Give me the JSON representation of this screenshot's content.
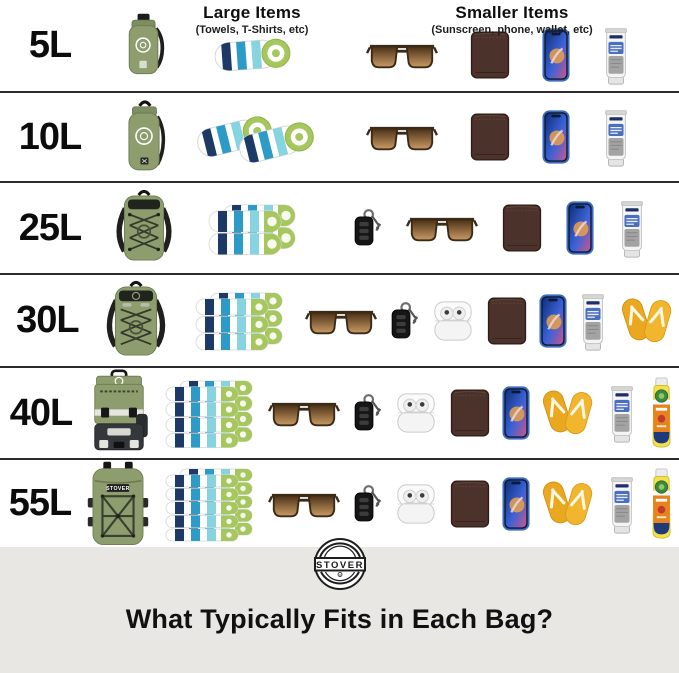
{
  "header": {
    "large_items_title": "Large Items",
    "large_items_subtitle": "(Towels, T-Shirts, etc)",
    "smaller_items_title": "Smaller Items",
    "smaller_items_subtitle": "(Sunscreen, phone, wallet, etc)"
  },
  "rows": [
    {
      "size_label": "5L",
      "bag": "dry-bag-5l",
      "towels": {
        "style": "rolled",
        "count": 1
      },
      "small_items": [
        "sunglasses",
        "wallet",
        "iphone",
        "sunscreen-tube"
      ]
    },
    {
      "size_label": "10L",
      "bag": "dry-bag-10l",
      "towels": {
        "style": "rolled",
        "count": 2
      },
      "small_items": [
        "sunglasses",
        "wallet",
        "iphone",
        "sunscreen-tube"
      ]
    },
    {
      "size_label": "25L",
      "bag": "backpack-25l",
      "towels": {
        "style": "stack",
        "layers": 2,
        "layer_h": 21
      },
      "small_items": [
        "car-keys",
        "sunglasses",
        "wallet",
        "iphone",
        "sunscreen-tube"
      ]
    },
    {
      "size_label": "30L",
      "bag": "backpack-30l",
      "towels": {
        "style": "stack",
        "layers": 3,
        "layer_h": 16
      },
      "small_items": [
        "sunglasses",
        "car-keys",
        "airpods",
        "wallet",
        "iphone",
        "sunscreen-tube",
        "flip-flops"
      ]
    },
    {
      "size_label": "40L",
      "bag": "cooler-backpack-40l",
      "towels": {
        "style": "stack",
        "layers": 4,
        "layer_h": 14
      },
      "small_items": [
        "sunglasses",
        "car-keys",
        "airpods",
        "wallet",
        "iphone",
        "flip-flops",
        "sunscreen-tube",
        "spray-sunscreen"
      ]
    },
    {
      "size_label": "55L",
      "bag": "backpack-55l",
      "towels": {
        "style": "stack",
        "layers": 5,
        "layer_h": 12
      },
      "small_items": [
        "sunglasses",
        "car-keys",
        "airpods",
        "wallet",
        "iphone",
        "flip-flops",
        "sunscreen-tube",
        "spray-sunscreen"
      ]
    }
  ],
  "footer": {
    "brand": "STOVER",
    "title": "What Typically Fits in Each Bag?"
  },
  "colors": {
    "bag_green": "#8e9d6e",
    "bag_green_dark": "#6d7c50",
    "bag_green_top": "#7f8e62",
    "strap_black": "#1e1e1e",
    "towel_navy": "#1d3a66",
    "towel_blue": "#2d9bc7",
    "towel_cyan": "#86d4e0",
    "towel_green": "#a6c75e",
    "wallet_brown": "#4b322a",
    "phone_frame": "#3f6cc0",
    "sunscreen_blue": "#4a6fc0",
    "flipflop_yellow": "#f2b52e",
    "spray_orange": "#e8821e",
    "spray_navy": "#1d3a7a",
    "footer_bg": "#e9e7e4",
    "divider": "#2b2b2b"
  }
}
